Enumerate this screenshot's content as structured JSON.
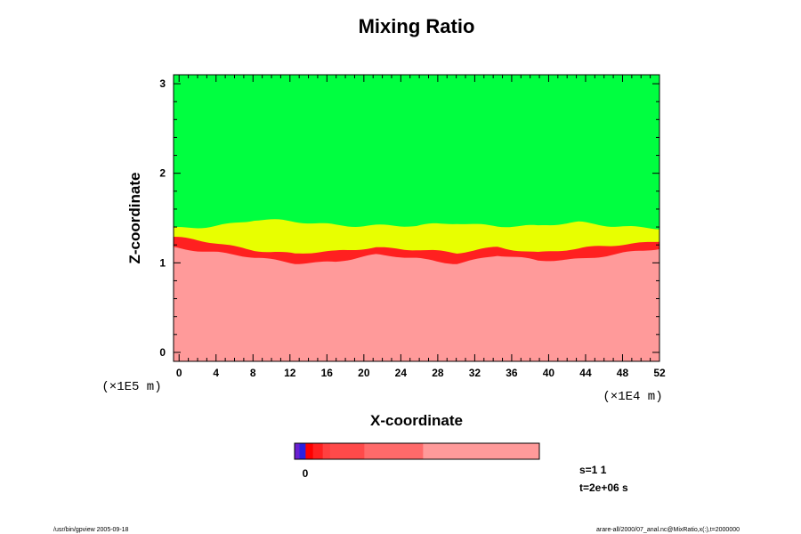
{
  "chart_data": {
    "type": "heatmap",
    "title": "Mixing Ratio",
    "xlabel": "X-coordinate",
    "ylabel": "Z-coordinate",
    "x_scale_label": "(×1E4 m)",
    "y_scale_label": "(×1E5 m)",
    "xlim": [
      -0.6,
      52
    ],
    "ylim": [
      -0.1,
      3.1
    ],
    "x_ticks": [
      "0",
      "4",
      "8",
      "12",
      "16",
      "20",
      "24",
      "28",
      "32",
      "36",
      "40",
      "44",
      "48",
      "52"
    ],
    "y_ticks": [
      "0",
      "1",
      "2",
      "3"
    ],
    "layers": [
      {
        "level": "top",
        "color": "#00ff40"
      },
      {
        "level": "transition",
        "color": "#e8ff00"
      },
      {
        "level": "interface",
        "color": "#ff2020"
      },
      {
        "level": "lower",
        "color": "#ff9a9a"
      }
    ],
    "interface_height": [
      1.28,
      1.22,
      1.15,
      1.1,
      1.12,
      1.18,
      1.15,
      1.1,
      1.18,
      1.12,
      1.15,
      1.2,
      1.25
    ],
    "top_height": [
      1.38,
      1.42,
      1.48,
      1.45,
      1.43,
      1.42,
      1.4,
      1.45,
      1.42,
      1.4,
      1.45,
      1.42,
      1.38
    ],
    "colorbar": {
      "label": "0",
      "segments": [
        {
          "color": "#6a1fd0",
          "fraction": 0.02
        },
        {
          "color": "#2a20e0",
          "fraction": 0.025
        },
        {
          "color": "#ff0000",
          "fraction": 0.03
        },
        {
          "color": "#ff2020",
          "fraction": 0.04
        },
        {
          "color": "#ff4040",
          "fraction": 0.03
        },
        {
          "color": "#ff4a4a",
          "fraction": 0.14
        },
        {
          "color": "#ff6a6a",
          "fraction": 0.24
        },
        {
          "color": "#ff9a9a",
          "fraction": 0.475
        }
      ]
    },
    "annotations": {
      "s": "s=1 1",
      "t": "t=2e+06 s"
    }
  },
  "footer": {
    "left": "/usr/bin/gpview 2005-09-18",
    "right": "arare-all/2000/07_anal.nc@MixRatio,x(:),t=2000000"
  }
}
